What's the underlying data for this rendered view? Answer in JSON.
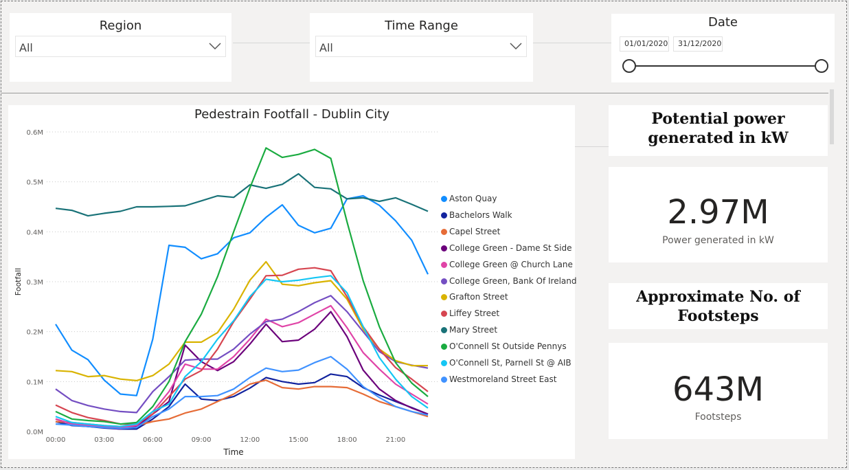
{
  "filters": {
    "region": {
      "title": "Region",
      "value": "All"
    },
    "time_range": {
      "title": "Time Range",
      "value": "All"
    },
    "date": {
      "title": "Date",
      "start": "01/01/2020",
      "end": "31/12/2020"
    }
  },
  "kpis": {
    "power_title": "Potential power generated in kW",
    "power_value": "2.97M",
    "power_label": "Power generated in kW",
    "footsteps_title": "Approximate No. of Footsteps",
    "footsteps_value": "643M",
    "footsteps_label": "Footsteps"
  },
  "chart_data": {
    "type": "line",
    "title": "Pedestrain Footfall - Dublin City",
    "xlabel": "Time",
    "ylabel": "Footfall",
    "x": [
      0,
      1,
      2,
      3,
      4,
      5,
      6,
      7,
      8,
      9,
      10,
      11,
      12,
      13,
      14,
      15,
      16,
      17,
      18,
      19,
      20,
      21,
      22,
      23
    ],
    "x_ticks": [
      {
        "v": 0,
        "label": "00:00"
      },
      {
        "v": 3,
        "label": "03:00"
      },
      {
        "v": 6,
        "label": "06:00"
      },
      {
        "v": 9,
        "label": "09:00"
      },
      {
        "v": 12,
        "label": "12:00"
      },
      {
        "v": 15,
        "label": "15:00"
      },
      {
        "v": 18,
        "label": "18:00"
      },
      {
        "v": 21,
        "label": "21:00"
      }
    ],
    "y_ticks": [
      {
        "v": 0,
        "label": "0.0M"
      },
      {
        "v": 100000,
        "label": "0.1M"
      },
      {
        "v": 200000,
        "label": "0.2M"
      },
      {
        "v": 300000,
        "label": "0.3M"
      },
      {
        "v": 400000,
        "label": "0.4M"
      },
      {
        "v": 500000,
        "label": "0.5M"
      },
      {
        "v": 600000,
        "label": "0.6M"
      }
    ],
    "ylim": [
      0,
      600000
    ],
    "xlim": [
      0,
      23
    ],
    "grid": true,
    "legend_position": "right",
    "series": [
      {
        "name": "Aston Quay",
        "color": "#118dff",
        "values": [
          215000,
          163000,
          144000,
          103000,
          75000,
          72000,
          185000,
          373000,
          369000,
          346000,
          356000,
          388000,
          398000,
          429000,
          454000,
          413000,
          398000,
          407000,
          466000,
          472000,
          453000,
          422000,
          383000,
          315000
        ]
      },
      {
        "name": "Bachelors Walk",
        "color": "#12239e",
        "values": [
          20000,
          12000,
          10000,
          7000,
          5000,
          5000,
          25000,
          50000,
          95000,
          65000,
          62000,
          70000,
          87000,
          108000,
          100000,
          95000,
          98000,
          115000,
          110000,
          88000,
          73000,
          60000,
          48000,
          35000
        ]
      },
      {
        "name": "Capel Street",
        "color": "#e66c37",
        "values": [
          20000,
          18000,
          15000,
          12000,
          10000,
          12000,
          20000,
          25000,
          37000,
          45000,
          60000,
          75000,
          95000,
          103000,
          88000,
          85000,
          90000,
          90000,
          88000,
          75000,
          60000,
          50000,
          40000,
          30000
        ]
      },
      {
        "name": "College Green - Dame St Side",
        "color": "#6b007b",
        "values": [
          25000,
          15000,
          10000,
          8000,
          5000,
          10000,
          35000,
          60000,
          173000,
          140000,
          122000,
          140000,
          175000,
          215000,
          180000,
          183000,
          205000,
          240000,
          190000,
          123000,
          85000,
          62000,
          47000,
          35000
        ]
      },
      {
        "name": "College Green @ Church Lane",
        "color": "#e044a7",
        "values": [
          25000,
          15000,
          12000,
          10000,
          8000,
          12000,
          40000,
          80000,
          135000,
          125000,
          125000,
          150000,
          185000,
          225000,
          210000,
          218000,
          235000,
          252000,
          208000,
          158000,
          125000,
          95000,
          75000,
          55000
        ]
      },
      {
        "name": "College Green, Bank Of Ireland",
        "color": "#744ec2",
        "values": [
          85000,
          62000,
          52000,
          45000,
          40000,
          38000,
          80000,
          110000,
          143000,
          145000,
          145000,
          165000,
          195000,
          220000,
          225000,
          240000,
          258000,
          272000,
          240000,
          200000,
          160000,
          140000,
          133000,
          127000
        ]
      },
      {
        "name": "Grafton Street",
        "color": "#d9b300",
        "values": [
          122000,
          120000,
          110000,
          112000,
          105000,
          102000,
          112000,
          135000,
          179000,
          179000,
          198000,
          245000,
          303000,
          340000,
          295000,
          292000,
          298000,
          302000,
          265000,
          205000,
          165000,
          142000,
          132000,
          132000
        ]
      },
      {
        "name": "Liffey Street",
        "color": "#d64550",
        "values": [
          53000,
          38000,
          28000,
          22000,
          15000,
          15000,
          35000,
          70000,
          105000,
          122000,
          165000,
          220000,
          265000,
          312000,
          313000,
          325000,
          328000,
          322000,
          270000,
          210000,
          165000,
          128000,
          105000,
          80000
        ]
      },
      {
        "name": "Mary Street",
        "color": "#197278",
        "values": [
          447000,
          443000,
          432000,
          437000,
          441000,
          450000,
          450000,
          451000,
          452000,
          462000,
          472000,
          469000,
          494000,
          487000,
          495000,
          516000,
          489000,
          486000,
          466000,
          468000,
          461000,
          468000,
          455000,
          441000
        ]
      },
      {
        "name": "O'Connell St Outside Pennys",
        "color": "#1aab40",
        "values": [
          40000,
          25000,
          22000,
          20000,
          15000,
          18000,
          50000,
          100000,
          180000,
          235000,
          310000,
          400000,
          488000,
          568000,
          549000,
          555000,
          565000,
          547000,
          420000,
          302000,
          210000,
          138000,
          97000,
          70000
        ]
      },
      {
        "name": "O'Connell St, Parnell St @ AIB",
        "color": "#15c6f4",
        "values": [
          30000,
          18000,
          15000,
          12000,
          10000,
          15000,
          40000,
          55000,
          110000,
          140000,
          185000,
          222000,
          270000,
          305000,
          300000,
          303000,
          308000,
          312000,
          278000,
          210000,
          148000,
          105000,
          70000,
          47000
        ]
      },
      {
        "name": "Westmoreland Street East",
        "color": "#4092ff",
        "values": [
          15000,
          13000,
          10000,
          8000,
          6000,
          8000,
          30000,
          45000,
          70000,
          70000,
          72000,
          85000,
          108000,
          127000,
          120000,
          123000,
          138000,
          150000,
          125000,
          90000,
          68000,
          50000,
          40000,
          33000
        ]
      }
    ]
  }
}
